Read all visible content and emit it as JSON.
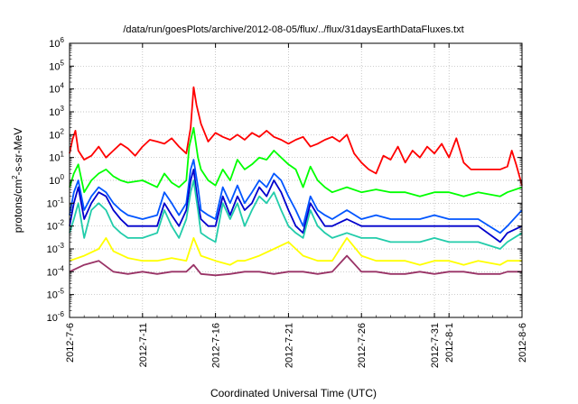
{
  "chart_data": {
    "type": "line",
    "title": "/data/run/goesPlots/archive/2012-08-05/flux/../flux/31daysEarthDataFluxes.txt",
    "xlabel": "Coordinated Universal Time (UTC)",
    "ylabel_parts": {
      "base": "protons/cm",
      "sup": "2",
      "rest": "-s-sr-MeV"
    },
    "yscale": "log",
    "ylim_exp": [
      -6,
      6
    ],
    "y_ticks": [
      {
        "base": "10",
        "exp": "-6"
      },
      {
        "base": "10",
        "exp": "-5"
      },
      {
        "base": "10",
        "exp": "-4"
      },
      {
        "base": "10",
        "exp": "-3"
      },
      {
        "base": "10",
        "exp": "-2"
      },
      {
        "base": "10",
        "exp": "-1"
      },
      {
        "base": "10",
        "exp": "0"
      },
      {
        "base": "10",
        "exp": "1"
      },
      {
        "base": "10",
        "exp": "2"
      },
      {
        "base": "10",
        "exp": "3"
      },
      {
        "base": "10",
        "exp": "4"
      },
      {
        "base": "10",
        "exp": "5"
      },
      {
        "base": "10",
        "exp": "6"
      }
    ],
    "x_ticks": [
      {
        "label": "2012-7-6",
        "day": 0
      },
      {
        "label": "2012-7-11",
        "day": 5
      },
      {
        "label": "2012-7-16",
        "day": 10
      },
      {
        "label": "2012-7-21",
        "day": 15
      },
      {
        "label": "2012-7-26",
        "day": 20
      },
      {
        "label": "2012-7-31",
        "day": 25
      },
      {
        "label": "2012-8-1",
        "day": 26
      },
      {
        "label": "2012-8-6",
        "day": 31
      }
    ],
    "xlim_days": [
      0,
      31
    ],
    "grid": true,
    "series": [
      {
        "color": "#ff0000",
        "x": [
          0,
          0.2,
          0.4,
          0.6,
          1,
          1.5,
          2,
          2.5,
          3,
          3.5,
          4,
          4.5,
          5,
          5.5,
          6,
          6.5,
          7,
          7.5,
          8,
          8.3,
          8.5,
          8.7,
          9,
          9.5,
          10,
          10.5,
          11,
          11.5,
          12,
          12.5,
          13,
          13.5,
          14,
          14.5,
          15,
          15.5,
          16,
          16.5,
          17,
          17.5,
          18,
          18.5,
          19,
          19.5,
          20,
          20.5,
          21,
          21.5,
          22,
          22.5,
          23,
          23.5,
          24,
          24.5,
          25,
          25.5,
          26,
          26.5,
          27,
          27.5,
          28,
          29.5,
          30,
          30.3,
          30.6,
          31
        ],
        "y": [
          15,
          60,
          150,
          20,
          8,
          12,
          30,
          10,
          20,
          40,
          25,
          12,
          30,
          60,
          50,
          40,
          70,
          30,
          15,
          200,
          12000,
          2000,
          300,
          50,
          120,
          80,
          60,
          100,
          60,
          120,
          80,
          150,
          80,
          60,
          40,
          60,
          80,
          30,
          40,
          60,
          80,
          50,
          100,
          15,
          6,
          3,
          2,
          12,
          8,
          30,
          6,
          20,
          10,
          30,
          15,
          40,
          10,
          70,
          6,
          3,
          3,
          3,
          4,
          20,
          5,
          0.6
        ]
      },
      {
        "color": "#00ff00",
        "x": [
          0,
          0.3,
          0.6,
          1,
          1.5,
          2,
          2.5,
          3,
          3.5,
          4,
          5,
          6,
          6.5,
          7,
          7.5,
          8,
          8.2,
          8.5,
          8.8,
          9,
          9.5,
          10,
          10.5,
          11,
          11.5,
          12,
          12.5,
          13,
          13.5,
          14,
          14.5,
          15,
          15.5,
          16,
          16.5,
          17,
          17.5,
          18,
          19,
          20,
          21,
          22,
          23,
          24,
          25,
          26,
          27,
          28,
          29.5,
          30,
          31
        ],
        "y": [
          0.5,
          2,
          5,
          0.3,
          1,
          2,
          3,
          1.5,
          1,
          0.8,
          1,
          0.5,
          2,
          0.8,
          0.5,
          1,
          30,
          200,
          10,
          3,
          1,
          0.6,
          3,
          1,
          8,
          3,
          5,
          10,
          8,
          20,
          10,
          5,
          3,
          0.5,
          4,
          1,
          0.5,
          0.3,
          0.5,
          0.3,
          0.4,
          0.3,
          0.3,
          0.2,
          0.3,
          0.3,
          0.2,
          0.3,
          0.2,
          0.3,
          0.5
        ]
      },
      {
        "color": "#0055ff",
        "x": [
          0,
          0.3,
          0.6,
          1,
          1.5,
          2,
          2.5,
          3,
          3.5,
          4,
          5,
          6,
          6.5,
          7,
          7.5,
          8,
          8.3,
          8.5,
          8.8,
          9,
          9.5,
          10,
          10.5,
          11,
          11.5,
          12,
          12.5,
          13,
          13.5,
          14,
          14.5,
          15,
          15.5,
          16,
          16.5,
          17,
          17.5,
          18,
          19,
          20,
          21,
          22,
          23,
          24,
          25,
          26,
          27,
          28,
          29.5,
          30,
          31
        ],
        "y": [
          0.03,
          0.3,
          1,
          0.05,
          0.2,
          0.5,
          0.3,
          0.1,
          0.05,
          0.03,
          0.02,
          0.03,
          0.3,
          0.1,
          0.03,
          0.1,
          3,
          8,
          0.5,
          0.05,
          0.03,
          0.02,
          0.5,
          0.1,
          0.6,
          0.1,
          0.3,
          1,
          0.5,
          2,
          1,
          0.2,
          0.05,
          0.01,
          0.2,
          0.05,
          0.03,
          0.02,
          0.05,
          0.02,
          0.03,
          0.02,
          0.02,
          0.02,
          0.03,
          0.02,
          0.02,
          0.02,
          0.005,
          0.01,
          0.05
        ]
      },
      {
        "color": "#0000cc",
        "x": [
          0,
          0.3,
          0.6,
          1,
          1.5,
          2,
          2.5,
          3,
          3.5,
          4,
          5,
          6,
          6.5,
          7,
          7.5,
          8,
          8.3,
          8.5,
          8.8,
          9,
          9.5,
          10,
          10.5,
          11,
          11.5,
          12,
          12.5,
          13,
          13.5,
          14,
          14.5,
          15,
          15.5,
          16,
          16.5,
          17,
          17.5,
          18,
          19,
          20,
          21,
          22,
          23,
          24,
          25,
          26,
          27,
          28,
          29.5,
          30,
          31
        ],
        "y": [
          0.01,
          0.1,
          0.5,
          0.02,
          0.1,
          0.3,
          0.2,
          0.05,
          0.02,
          0.01,
          0.01,
          0.01,
          0.1,
          0.03,
          0.01,
          0.05,
          1,
          3,
          0.1,
          0.02,
          0.01,
          0.01,
          0.2,
          0.03,
          0.2,
          0.05,
          0.1,
          0.5,
          0.2,
          1,
          0.3,
          0.05,
          0.01,
          0.005,
          0.1,
          0.03,
          0.01,
          0.01,
          0.02,
          0.01,
          0.01,
          0.01,
          0.01,
          0.01,
          0.01,
          0.01,
          0.01,
          0.01,
          0.002,
          0.005,
          0.01
        ]
      },
      {
        "color": "#22ccaa",
        "x": [
          0,
          0.3,
          0.6,
          1,
          1.5,
          2,
          2.5,
          3,
          3.5,
          4,
          5,
          6,
          6.5,
          7,
          7.5,
          8,
          8.3,
          8.5,
          8.8,
          9,
          9.5,
          10,
          10.5,
          11,
          11.5,
          12,
          12.5,
          13,
          13.5,
          14,
          14.5,
          15,
          15.5,
          16,
          16.5,
          17,
          17.5,
          18,
          19,
          20,
          21,
          22,
          23,
          24,
          25,
          26,
          27,
          28,
          29.5,
          30,
          31
        ],
        "y": [
          0.005,
          0.02,
          0.1,
          0.003,
          0.05,
          0.1,
          0.05,
          0.01,
          0.005,
          0.003,
          0.003,
          0.005,
          0.05,
          0.01,
          0.003,
          0.02,
          0.3,
          1,
          0.05,
          0.005,
          0.003,
          0.002,
          0.1,
          0.02,
          0.1,
          0.01,
          0.05,
          0.2,
          0.1,
          0.3,
          0.05,
          0.01,
          0.005,
          0.003,
          0.05,
          0.01,
          0.005,
          0.003,
          0.005,
          0.003,
          0.003,
          0.002,
          0.002,
          0.002,
          0.003,
          0.002,
          0.002,
          0.002,
          0.001,
          0.002,
          0.005
        ]
      },
      {
        "color": "#ffff00",
        "x": [
          0,
          1,
          2,
          2.5,
          3,
          4,
          5,
          6,
          7,
          8,
          8.5,
          9,
          10,
          11,
          11.5,
          12,
          13,
          14,
          15,
          16,
          17,
          18,
          19,
          20,
          21,
          22,
          23,
          24,
          25,
          26,
          27,
          28,
          29.5,
          30,
          31
        ],
        "y": [
          0.0003,
          0.0005,
          0.001,
          0.003,
          0.0008,
          0.0004,
          0.0003,
          0.0003,
          0.0004,
          0.0003,
          0.003,
          0.0005,
          0.0003,
          0.0002,
          0.0003,
          0.0003,
          0.0005,
          0.001,
          0.002,
          0.0005,
          0.0003,
          0.0003,
          0.003,
          0.0005,
          0.0003,
          0.0003,
          0.0003,
          0.0002,
          0.0003,
          0.0003,
          0.0002,
          0.0003,
          0.0002,
          0.0003,
          0.0003
        ]
      },
      {
        "color": "#993366",
        "x": [
          0,
          1,
          2,
          3,
          4,
          5,
          6,
          7,
          8,
          8.5,
          9,
          10,
          11,
          12,
          13,
          14,
          15,
          16,
          17,
          18,
          19,
          20,
          21,
          22,
          23,
          24,
          25,
          26,
          27,
          28,
          29.5,
          30,
          31
        ],
        "y": [
          0.0001,
          0.0002,
          0.0003,
          0.0001,
          8e-05,
          0.0001,
          8e-05,
          0.0001,
          0.0001,
          0.0002,
          8e-05,
          7e-05,
          8e-05,
          0.0001,
          0.0001,
          8e-05,
          0.0001,
          0.0001,
          8e-05,
          0.0001,
          0.0005,
          0.0001,
          0.0001,
          8e-05,
          8e-05,
          0.0001,
          8e-05,
          0.0001,
          0.0001,
          8e-05,
          8e-05,
          0.0001,
          0.0001
        ]
      }
    ]
  }
}
